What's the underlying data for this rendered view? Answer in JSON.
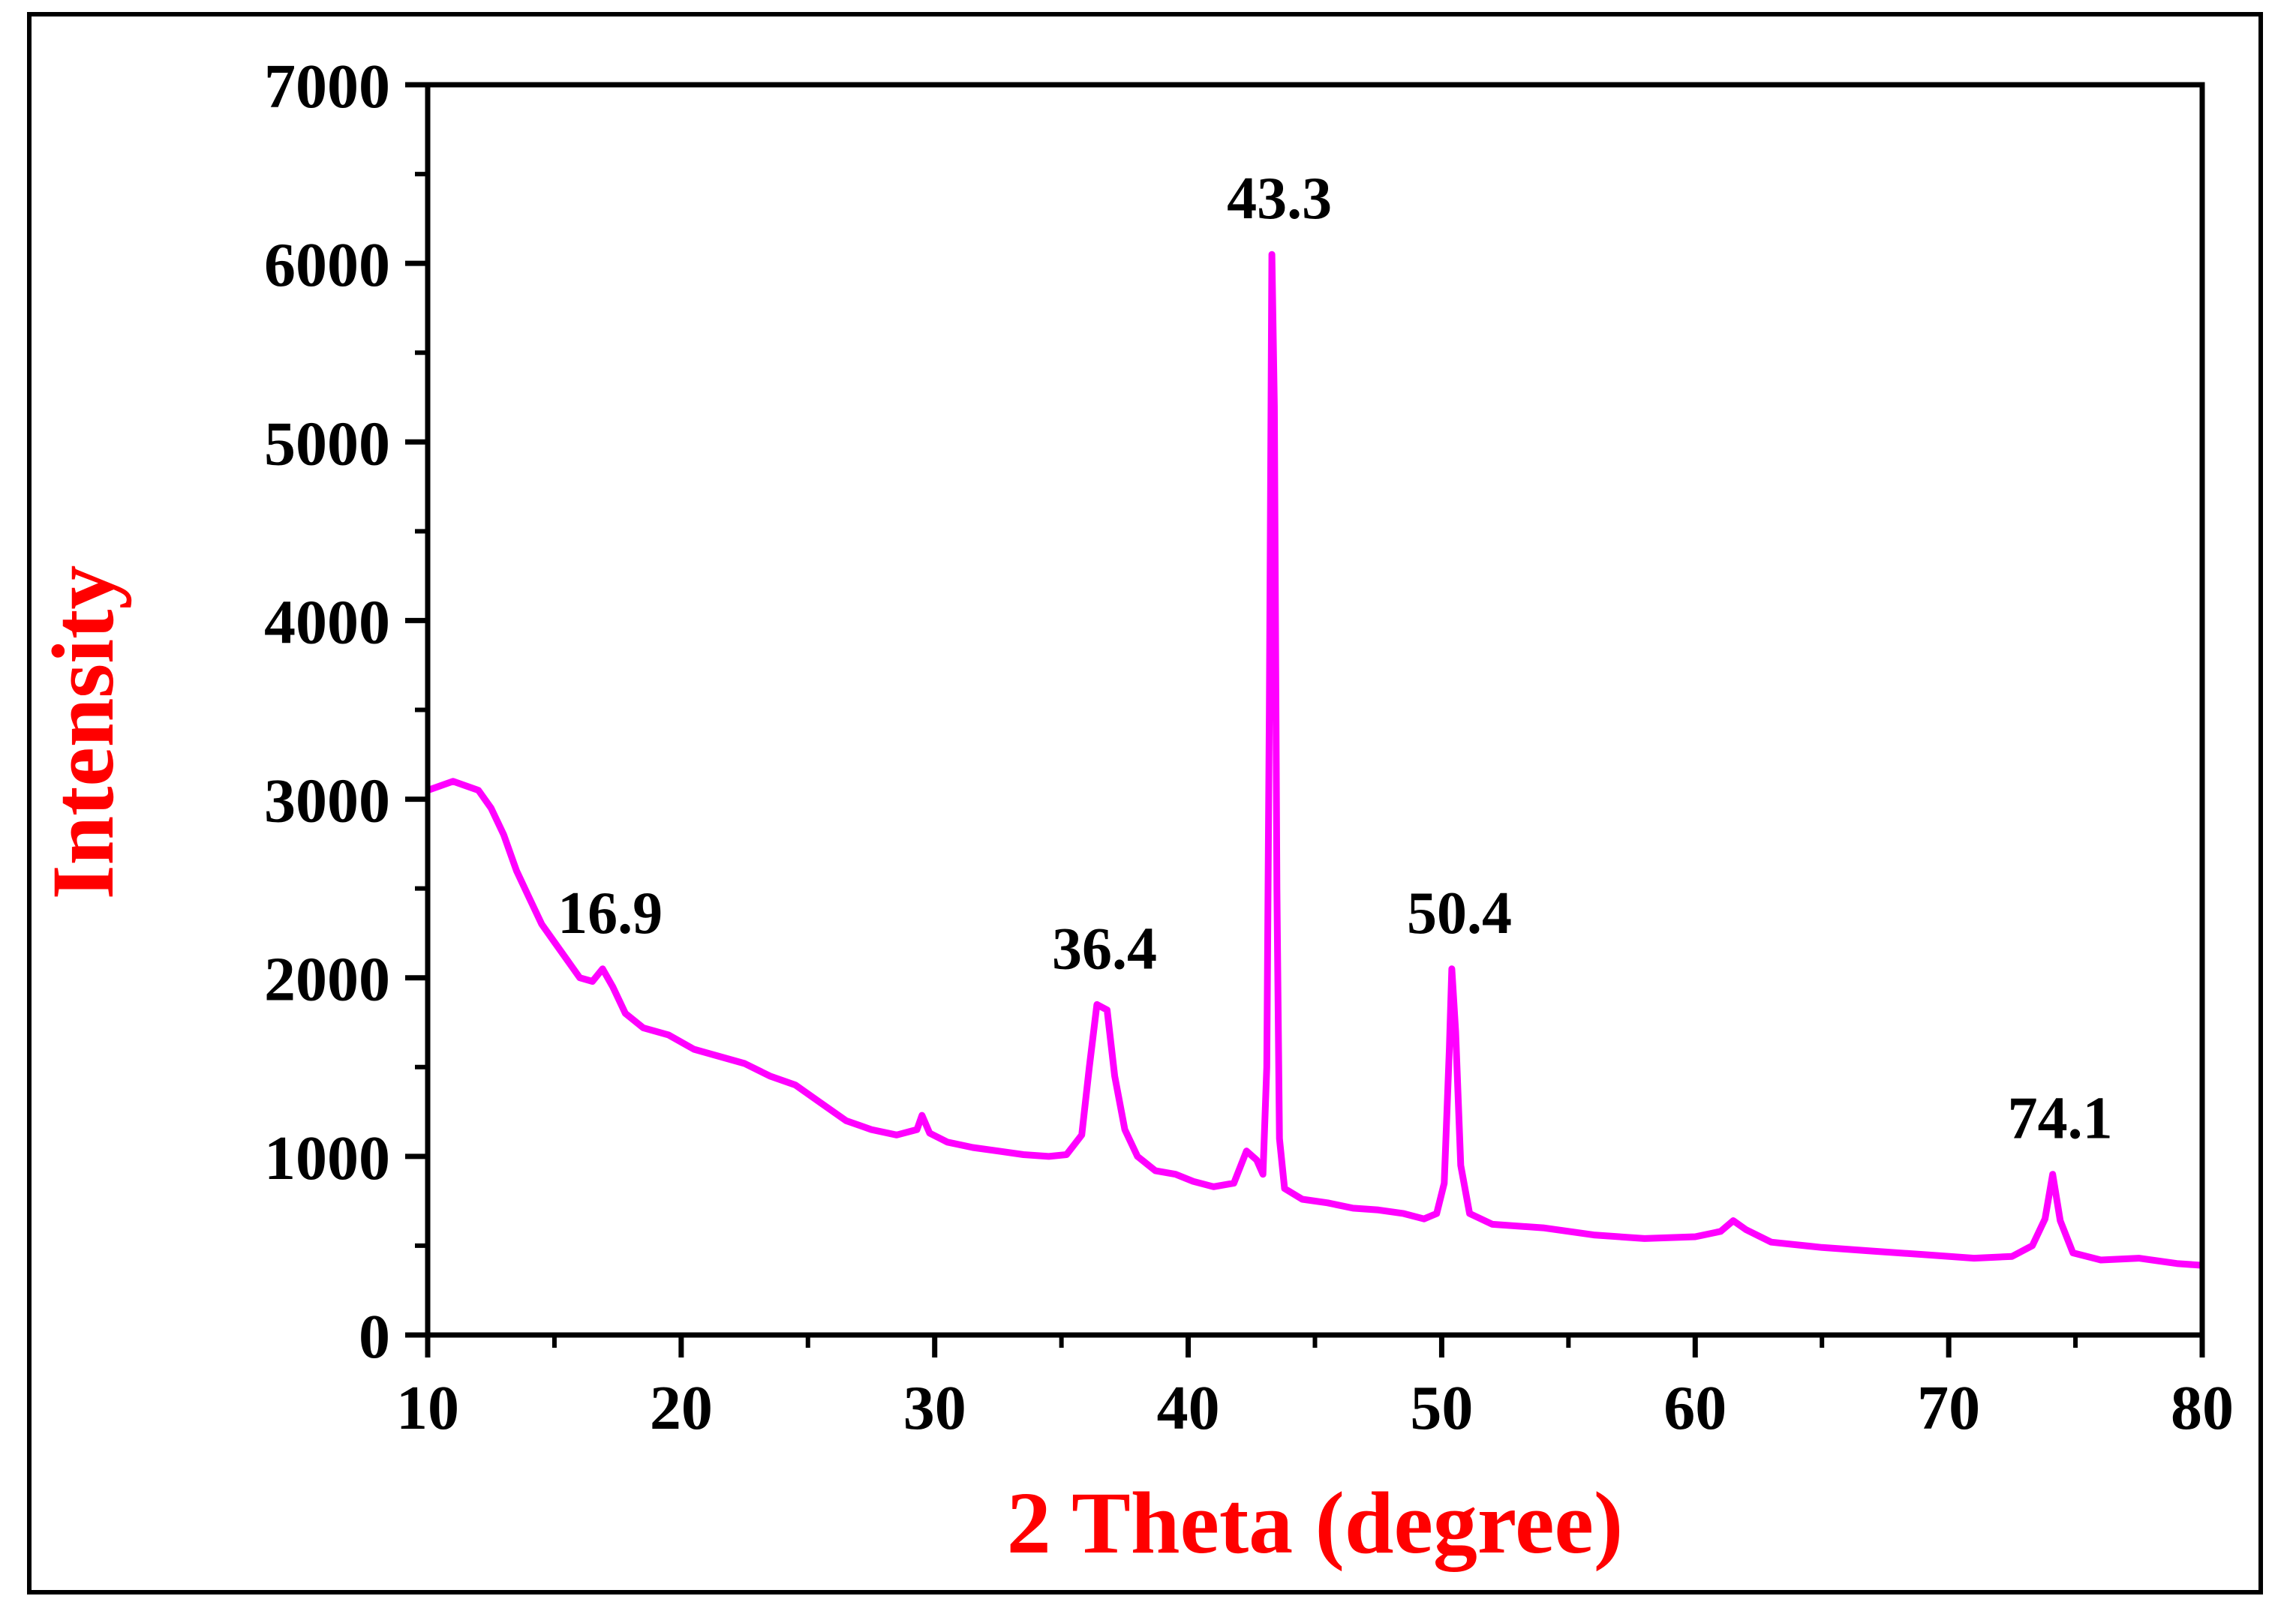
{
  "chart_data": {
    "type": "line",
    "title": "",
    "xlabel": "2 Theta (degree)",
    "ylabel": "Intensity",
    "xlim": [
      10,
      80
    ],
    "ylim": [
      0,
      7000
    ],
    "x_ticks": [
      10,
      20,
      30,
      40,
      50,
      60,
      70,
      80
    ],
    "y_ticks": [
      0,
      1000,
      2000,
      3000,
      4000,
      5000,
      6000,
      7000
    ],
    "grid": false,
    "legend": "none",
    "series": [
      {
        "color": "#ff00ff",
        "points": [
          [
            10,
            3050
          ],
          [
            11,
            3100
          ],
          [
            12,
            3050
          ],
          [
            12.5,
            2950
          ],
          [
            13,
            2800
          ],
          [
            13.5,
            2600
          ],
          [
            14,
            2450
          ],
          [
            14.5,
            2300
          ],
          [
            15,
            2200
          ],
          [
            15.5,
            2100
          ],
          [
            16,
            2000
          ],
          [
            16.5,
            1980
          ],
          [
            16.9,
            2050
          ],
          [
            17.3,
            1950
          ],
          [
            17.8,
            1800
          ],
          [
            18.5,
            1720
          ],
          [
            19.5,
            1680
          ],
          [
            20.5,
            1600
          ],
          [
            21.5,
            1560
          ],
          [
            22.5,
            1520
          ],
          [
            23.5,
            1450
          ],
          [
            24.5,
            1400
          ],
          [
            25.5,
            1300
          ],
          [
            26.5,
            1200
          ],
          [
            27.5,
            1150
          ],
          [
            28.5,
            1120
          ],
          [
            29.3,
            1150
          ],
          [
            29.5,
            1230
          ],
          [
            29.8,
            1130
          ],
          [
            30.5,
            1080
          ],
          [
            31.5,
            1050
          ],
          [
            32.5,
            1030
          ],
          [
            33.5,
            1010
          ],
          [
            34.5,
            1000
          ],
          [
            35.2,
            1010
          ],
          [
            35.8,
            1120
          ],
          [
            36.1,
            1500
          ],
          [
            36.4,
            1850
          ],
          [
            36.8,
            1820
          ],
          [
            37.1,
            1450
          ],
          [
            37.5,
            1150
          ],
          [
            38,
            1000
          ],
          [
            38.7,
            920
          ],
          [
            39.5,
            900
          ],
          [
            40.2,
            860
          ],
          [
            41,
            830
          ],
          [
            41.8,
            850
          ],
          [
            42.3,
            1030
          ],
          [
            42.7,
            980
          ],
          [
            42.95,
            900
          ],
          [
            43.1,
            1500
          ],
          [
            43.2,
            3500
          ],
          [
            43.3,
            6050
          ],
          [
            43.4,
            5200
          ],
          [
            43.5,
            2500
          ],
          [
            43.6,
            1100
          ],
          [
            43.8,
            820
          ],
          [
            44.5,
            760
          ],
          [
            45.5,
            740
          ],
          [
            46.5,
            710
          ],
          [
            47.5,
            700
          ],
          [
            48.5,
            680
          ],
          [
            49.3,
            650
          ],
          [
            49.8,
            680
          ],
          [
            50.1,
            850
          ],
          [
            50.3,
            1600
          ],
          [
            50.4,
            2050
          ],
          [
            50.55,
            1700
          ],
          [
            50.75,
            950
          ],
          [
            51.1,
            680
          ],
          [
            52,
            620
          ],
          [
            54,
            600
          ],
          [
            56,
            560
          ],
          [
            58,
            540
          ],
          [
            60,
            550
          ],
          [
            61,
            580
          ],
          [
            61.5,
            640
          ],
          [
            62,
            590
          ],
          [
            63,
            520
          ],
          [
            65,
            490
          ],
          [
            67,
            470
          ],
          [
            69,
            450
          ],
          [
            71,
            430
          ],
          [
            72.5,
            440
          ],
          [
            73.3,
            500
          ],
          [
            73.8,
            650
          ],
          [
            74.1,
            900
          ],
          [
            74.4,
            640
          ],
          [
            74.9,
            460
          ],
          [
            76,
            420
          ],
          [
            77.5,
            430
          ],
          [
            79,
            400
          ],
          [
            80,
            390
          ]
        ]
      }
    ],
    "annotations": [
      {
        "text": "16.9",
        "x": 16.9,
        "y": 2050
      },
      {
        "text": "36.4",
        "x": 36.4,
        "y": 1850
      },
      {
        "text": "43.3",
        "x": 43.3,
        "y": 6050
      },
      {
        "text": "50.4",
        "x": 50.4,
        "y": 2050
      },
      {
        "text": "74.1",
        "x": 74.1,
        "y": 900
      }
    ],
    "colors": {
      "line": "#ff00ff",
      "axis_title": "#ff0000",
      "axes": "#000000"
    }
  }
}
